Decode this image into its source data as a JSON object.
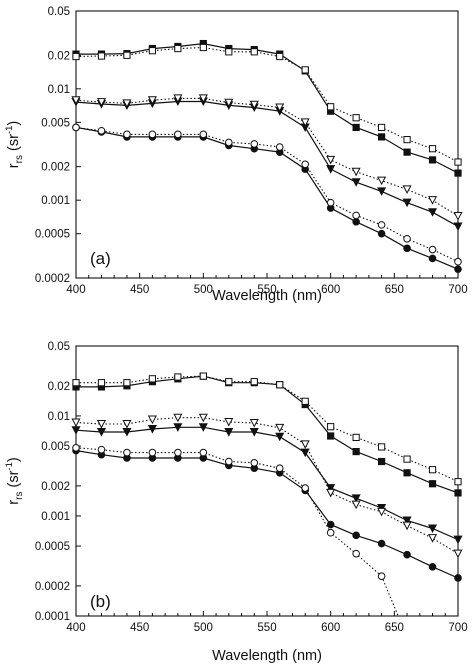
{
  "chart_data": [
    {
      "type": "line",
      "panel_label": "(a)",
      "xlabel": "Wavelength  (nm)",
      "ylabel": {
        "main": "r",
        "sub": "rs",
        "unit_open": " (sr",
        "unit_sup": "-1",
        "unit_close": ")"
      },
      "yscale": "log",
      "xlim": [
        400,
        700
      ],
      "ylim": [
        0.0002,
        0.05
      ],
      "xticks": [
        "400",
        "450",
        "500",
        "550",
        "600",
        "650",
        "700"
      ],
      "yticks": [
        "0.0002",
        "0.0005",
        "0.001",
        "0.002",
        "0.005",
        "0.01",
        "0.02",
        "0.05"
      ],
      "x": [
        400,
        420,
        440,
        460,
        480,
        500,
        520,
        540,
        560,
        580,
        600,
        620,
        640,
        660,
        680,
        700
      ],
      "series": [
        {
          "marker": "filled-square",
          "line": "solid",
          "values": [
            0.0205,
            0.0205,
            0.0207,
            0.023,
            0.024,
            0.0255,
            0.023,
            0.0225,
            0.0205,
            0.0145,
            0.0063,
            0.0045,
            0.0037,
            0.0027,
            0.0023,
            0.00175
          ]
        },
        {
          "marker": "open-square",
          "line": "dotted",
          "values": [
            0.0195,
            0.0197,
            0.02,
            0.022,
            0.023,
            0.0235,
            0.0215,
            0.0215,
            0.0195,
            0.0148,
            0.0069,
            0.0055,
            0.0045,
            0.0035,
            0.0029,
            0.0022
          ]
        },
        {
          "marker": "filled-triangle-down",
          "line": "solid",
          "values": [
            0.0076,
            0.0073,
            0.0071,
            0.0074,
            0.0077,
            0.0077,
            0.0071,
            0.0068,
            0.0063,
            0.0045,
            0.0019,
            0.00145,
            0.0012,
            0.00095,
            0.00078,
            0.00058
          ]
        },
        {
          "marker": "open-triangle-down",
          "line": "dotted",
          "values": [
            0.0079,
            0.0076,
            0.0074,
            0.0079,
            0.0082,
            0.0082,
            0.0075,
            0.0072,
            0.0068,
            0.005,
            0.0023,
            0.0018,
            0.0015,
            0.00125,
            0.001,
            0.00072
          ]
        },
        {
          "marker": "filled-circle",
          "line": "solid",
          "values": [
            0.0045,
            0.0041,
            0.0037,
            0.0037,
            0.0037,
            0.0037,
            0.0031,
            0.0029,
            0.0027,
            0.0019,
            0.00085,
            0.00064,
            0.0005,
            0.00037,
            0.0003,
            0.00024
          ]
        },
        {
          "marker": "open-circle",
          "line": "dotted",
          "values": [
            0.0045,
            0.0042,
            0.0039,
            0.0039,
            0.0039,
            0.0039,
            0.0033,
            0.0032,
            0.003,
            0.0021,
            0.00095,
            0.00073,
            0.0006,
            0.00045,
            0.00036,
            0.00028
          ]
        }
      ]
    },
    {
      "type": "line",
      "panel_label": "(b)",
      "xlabel": "Wavelength  (nm)",
      "ylabel": {
        "main": "r",
        "sub": "rs",
        "unit_open": " (sr",
        "unit_sup": "-1",
        "unit_close": ")"
      },
      "yscale": "log",
      "xlim": [
        400,
        700
      ],
      "ylim": [
        0.0001,
        0.05
      ],
      "xticks": [
        "400",
        "450",
        "500",
        "550",
        "600",
        "650",
        "700"
      ],
      "yticks": [
        "0.0001",
        "0.0002",
        "0.0005",
        "0.001",
        "0.002",
        "0.005",
        "0.01",
        "0.02",
        "0.05"
      ],
      "x": [
        400,
        420,
        440,
        460,
        480,
        500,
        520,
        540,
        560,
        580,
        600,
        620,
        640,
        660,
        680,
        700
      ],
      "series": [
        {
          "marker": "filled-square",
          "line": "solid",
          "values": [
            0.0195,
            0.0195,
            0.02,
            0.022,
            0.0235,
            0.025,
            0.0215,
            0.0215,
            0.0205,
            0.013,
            0.0063,
            0.0044,
            0.0035,
            0.0027,
            0.0021,
            0.0017
          ]
        },
        {
          "marker": "open-square",
          "line": "dotted",
          "values": [
            0.0215,
            0.0215,
            0.0215,
            0.0235,
            0.0245,
            0.025,
            0.022,
            0.022,
            0.0205,
            0.014,
            0.0078,
            0.0061,
            0.0049,
            0.0037,
            0.0029,
            0.0022
          ]
        },
        {
          "marker": "filled-triangle-down",
          "line": "solid",
          "values": [
            0.0072,
            0.0069,
            0.0069,
            0.0074,
            0.0077,
            0.0077,
            0.0069,
            0.0069,
            0.0062,
            0.0043,
            0.0019,
            0.0015,
            0.0012,
            0.0009,
            0.00075,
            0.00058
          ]
        },
        {
          "marker": "open-triangle-down",
          "line": "dotted",
          "values": [
            0.0086,
            0.0083,
            0.0083,
            0.0092,
            0.0096,
            0.0096,
            0.0087,
            0.0085,
            0.0076,
            0.0052,
            0.0017,
            0.0013,
            0.0011,
            0.0008,
            0.0006,
            0.00042
          ]
        },
        {
          "marker": "filled-circle",
          "line": "solid",
          "values": [
            0.0045,
            0.0041,
            0.0038,
            0.0038,
            0.0038,
            0.0038,
            0.0032,
            0.003,
            0.0027,
            0.0018,
            0.00082,
            0.00064,
            0.00053,
            0.00041,
            0.00031,
            0.00024
          ]
        },
        {
          "marker": "open-circle",
          "line": "dotted",
          "values": [
            0.0048,
            0.0046,
            0.0043,
            0.0043,
            0.0043,
            0.0043,
            0.0035,
            0.0034,
            0.003,
            0.0019,
            0.00068,
            0.00042,
            0.00025,
            null,
            null,
            null
          ],
          "tail": {
            "x": [
              640,
              653
            ],
            "values": [
              0.00025,
              0.0001
            ]
          }
        }
      ]
    }
  ]
}
